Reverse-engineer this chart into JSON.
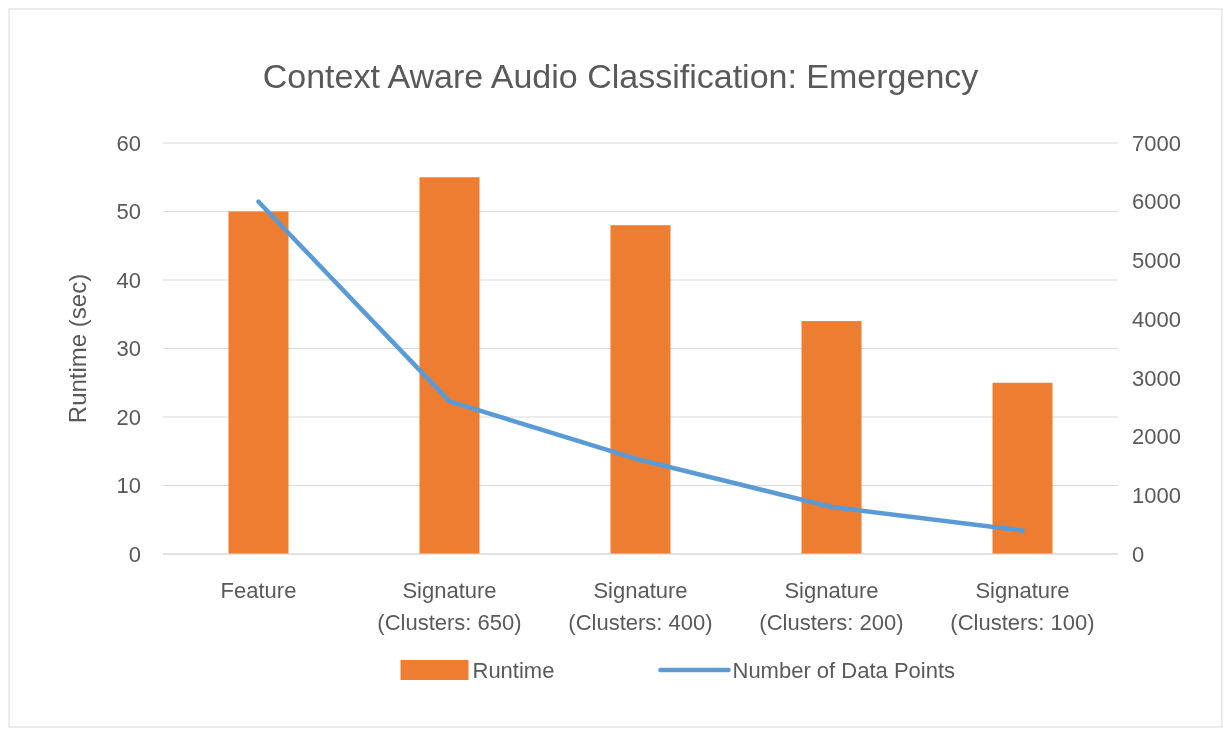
{
  "chart_data": {
    "type": "bar",
    "title": "Context Aware Audio Classification: Emergency",
    "ylabel": "Runtime (sec)",
    "categories": [
      "Feature",
      "Signature (Clusters: 650)",
      "Signature (Clusters: 400)",
      "Signature (Clusters: 200)",
      "Signature (Clusters: 100)"
    ],
    "series": [
      {
        "name": "Runtime",
        "color": "#ed7d31",
        "values": [
          50,
          55,
          48,
          34,
          25
        ]
      },
      {
        "name": "Number of Data Points",
        "type": "line",
        "axis": "y2",
        "color": "#5b9bd5",
        "values": [
          6000,
          2600,
          1600,
          800,
          400
        ]
      }
    ],
    "ylim": [
      0,
      60
    ],
    "yticks": [
      0,
      10,
      20,
      30,
      40,
      50,
      60
    ],
    "y2lim": [
      0,
      7000
    ],
    "y2ticks": [
      0,
      1000,
      2000,
      3000,
      4000,
      5000,
      6000,
      7000
    ],
    "grid": "y",
    "legend": "bottom",
    "marker": "none"
  }
}
